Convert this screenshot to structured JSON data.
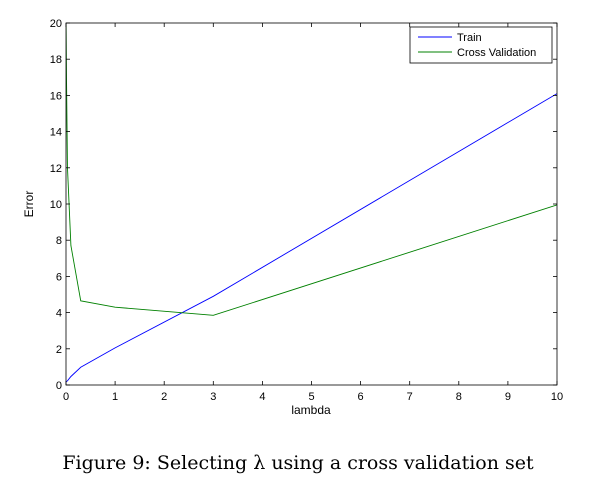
{
  "chart_data": {
    "type": "line",
    "xlabel": "lambda",
    "ylabel": "Error",
    "xlim": [
      0,
      10
    ],
    "ylim": [
      0,
      20
    ],
    "xticks": [
      "0",
      "1",
      "2",
      "3",
      "4",
      "5",
      "6",
      "7",
      "8",
      "9",
      "10"
    ],
    "yticks": [
      "0",
      "2",
      "4",
      "6",
      "8",
      "10",
      "12",
      "14",
      "16",
      "18",
      "20"
    ],
    "grid": false,
    "legend_position": "top-right",
    "series": [
      {
        "name": "Train",
        "color": "#0000ff",
        "x": [
          0,
          0.001,
          0.003,
          0.01,
          0.03,
          0.1,
          0.3,
          1,
          3,
          10
        ],
        "y": [
          0.17,
          0.17,
          0.17,
          0.19,
          0.23,
          0.47,
          0.98,
          2.05,
          4.9,
          16.1
        ]
      },
      {
        "name": "Cross Validation",
        "color": "#008000",
        "x": [
          0,
          0.001,
          0.003,
          0.01,
          0.03,
          0.1,
          0.3,
          1,
          3,
          10
        ],
        "y": [
          20.0,
          20.0,
          19.5,
          17.0,
          12.0,
          7.7,
          4.65,
          4.3,
          3.85,
          9.95
        ]
      }
    ]
  },
  "caption": "Figure 9: Selecting λ using a cross validation set"
}
